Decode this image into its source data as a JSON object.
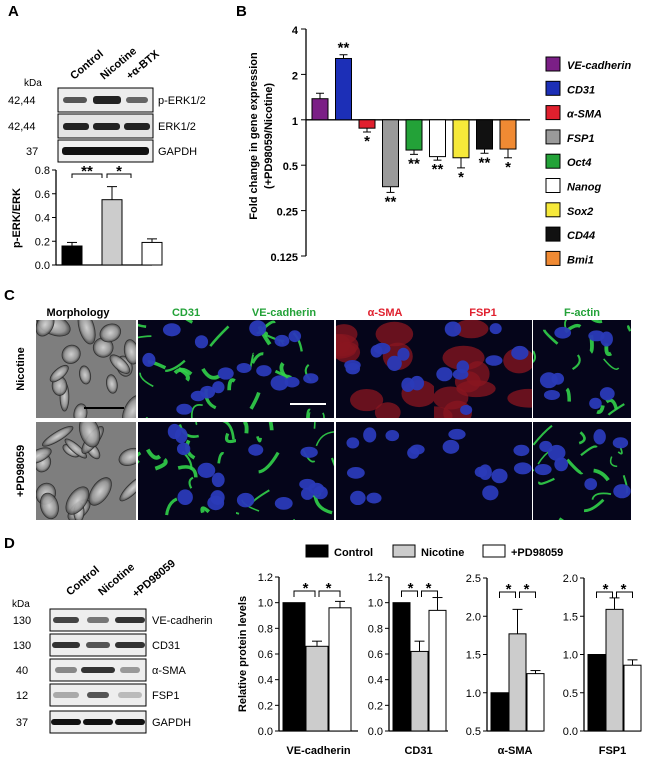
{
  "panels": [
    "A",
    "B",
    "C",
    "D"
  ],
  "panel_a": {
    "kda_label": "kDa",
    "lanes": [
      "Control",
      "Nicotine",
      "+α-BTX"
    ],
    "mw": [
      "42,44",
      "42,44",
      "37"
    ],
    "blots": [
      "p-ERK1/2",
      "ERK1/2",
      "GAPDH"
    ],
    "sig": [
      "**",
      "*"
    ]
  },
  "panel_b": {
    "legend": [
      "VE-cadherin",
      "CD31",
      "α-SMA",
      "FSP1",
      "Oct4",
      "Nanog",
      "Sox2",
      "CD44",
      "Bmi1"
    ],
    "colors": [
      "#7B1F86",
      "#1c2fb7",
      "#e0202e",
      "#9a9a9a",
      "#23a238",
      "#ffffff",
      "#f6e93a",
      "#111111",
      "#f08a33"
    ],
    "sig": [
      "",
      "**",
      "*",
      "**",
      "**",
      "**",
      "*",
      "**",
      "*"
    ]
  },
  "panel_c": {
    "columns": [
      "Morphology",
      "CD31",
      "VE-cadherin",
      "α-SMA",
      "FSP1",
      "F-actin"
    ],
    "column_colors": [
      "#000000",
      "#23a238",
      "#23a238",
      "#e0202e",
      "#e0202e",
      "#23a238"
    ],
    "rows": [
      "Nicotine",
      "+PD98059"
    ],
    "tiles": [
      [
        "phase",
        "green",
        "green",
        "red",
        "red",
        "green"
      ],
      [
        "phase",
        "green",
        "green",
        "blue",
        "blue",
        "green"
      ]
    ]
  },
  "panel_d": {
    "kda_label": "kDa",
    "lanes": [
      "Control",
      "Nicotine",
      "+PD98059"
    ],
    "mw": [
      "130",
      "130",
      "40",
      "12",
      "37"
    ],
    "blots": [
      "VE-cadherin",
      "CD31",
      "α-SMA",
      "FSP1",
      "GAPDH"
    ],
    "legend": [
      "Control",
      "Nicotine",
      "+PD98059"
    ],
    "legend_colors": [
      "#000000",
      "#cccccc",
      "#ffffff"
    ]
  },
  "chart_data": [
    {
      "id": "A",
      "type": "bar",
      "categories": [
        "Control",
        "Nicotine",
        "+α-BTX"
      ],
      "values": [
        0.16,
        0.55,
        0.19
      ],
      "errors": [
        0.03,
        0.11,
        0.03
      ],
      "colors": [
        "#000000",
        "#cccccc",
        "#ffffff"
      ],
      "ylabel": "p-ERK/ERK",
      "ylim": [
        0,
        0.8
      ],
      "yticks": [
        "0.0",
        "0.2",
        "0.4",
        "0.6",
        "0.8"
      ]
    },
    {
      "id": "B",
      "type": "bar",
      "categories": [
        "VE-cadherin",
        "CD31",
        "α-SMA",
        "FSP1",
        "Oct4",
        "Nanog",
        "Sox2",
        "CD44",
        "Bmi1"
      ],
      "values": [
        1.38,
        2.55,
        0.88,
        0.36,
        0.63,
        0.57,
        0.56,
        0.64,
        0.64
      ],
      "errors": [
        0.12,
        0.15,
        0.05,
        0.03,
        0.04,
        0.03,
        0.08,
        0.04,
        0.08
      ],
      "ylabel": "Fold change in gene expression (+PD98059/Nicotine)",
      "yscale": "log2",
      "ylim": [
        0.125,
        4
      ],
      "yticks": [
        "4",
        "2",
        "1",
        "0.5",
        "0.25",
        "0.125"
      ]
    },
    {
      "id": "D1",
      "type": "bar",
      "categories": [
        "Control",
        "Nicotine",
        "+PD98059"
      ],
      "values": [
        1.0,
        0.66,
        0.96
      ],
      "errors": [
        0,
        0.04,
        0.05
      ],
      "xlabel": "VE-cadherin",
      "ylabel": "Relative protein levels",
      "ylim": [
        0,
        1.2
      ],
      "yticks": [
        "0.0",
        "0.2",
        "0.4",
        "0.6",
        "0.8",
        "1.0",
        "1.2"
      ],
      "sig": [
        "*",
        "*"
      ]
    },
    {
      "id": "D2",
      "type": "bar",
      "categories": [
        "Control",
        "Nicotine",
        "+PD98059"
      ],
      "values": [
        1.0,
        0.62,
        0.94
      ],
      "errors": [
        0,
        0.08,
        0.1
      ],
      "xlabel": "CD31",
      "ylim": [
        0,
        1.2
      ],
      "yticks": [
        "0.0",
        "0.2",
        "0.4",
        "0.6",
        "0.8",
        "1.0",
        "1.2"
      ],
      "sig": [
        "*",
        "*"
      ]
    },
    {
      "id": "D3",
      "type": "bar",
      "categories": [
        "Control",
        "Nicotine",
        "+PD98059"
      ],
      "values": [
        1.0,
        1.77,
        1.25
      ],
      "errors": [
        0,
        0.32,
        0.04
      ],
      "xlabel": "α-SMA",
      "ylim": [
        0.5,
        2.5
      ],
      "yticks": [
        "0.5",
        "1.0",
        "1.5",
        "2.0",
        "2.5"
      ],
      "sig": [
        "*",
        "*"
      ]
    },
    {
      "id": "D4",
      "type": "bar",
      "categories": [
        "Control",
        "Nicotine",
        "+PD98059"
      ],
      "values": [
        1.0,
        1.59,
        0.86
      ],
      "errors": [
        0,
        0.15,
        0.07
      ],
      "xlabel": "FSP1",
      "ylim": [
        0,
        2.0
      ],
      "yticks": [
        "0.0",
        "0.5",
        "1.0",
        "1.5",
        "2.0"
      ],
      "sig": [
        "*",
        "*"
      ]
    }
  ]
}
